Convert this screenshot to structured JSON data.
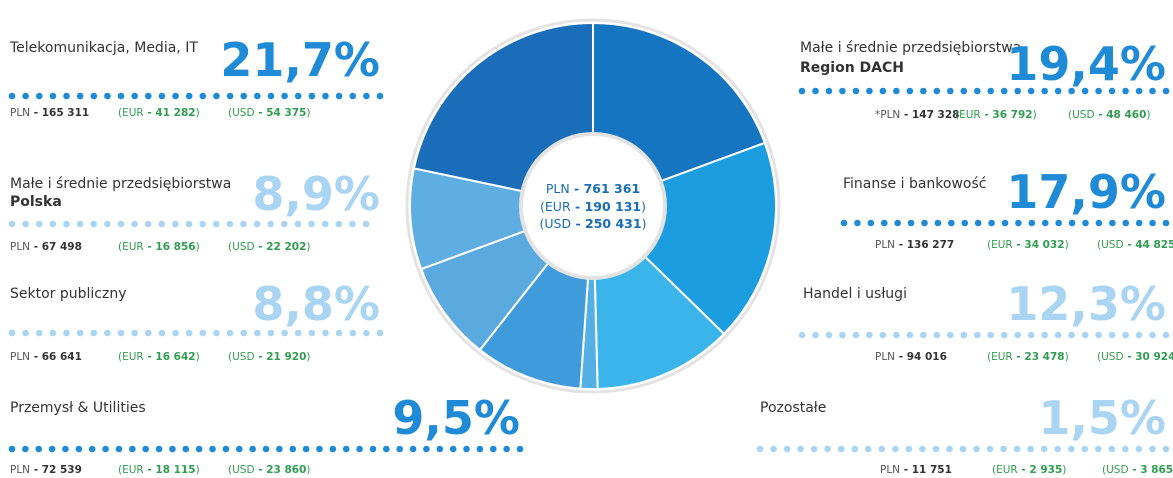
{
  "chart_data": {
    "type": "pie",
    "categories": [
      "Małe i średnie przedsiębiorstwa",
      "Finanse i bankowość",
      "Handel i usługi",
      "Pozostałe",
      "Przemysł & Utilities",
      "Sektor publiczny",
      "Małe i średnie przedsiębiorstwa",
      "Telekomunikacja, Media, IT"
    ],
    "subtitles": [
      "Region DACH",
      null,
      null,
      null,
      null,
      null,
      "Polska",
      null
    ],
    "values": [
      19.4,
      17.9,
      12.3,
      1.5,
      9.5,
      8.8,
      8.9,
      21.7
    ],
    "value_labels": [
      "19,4%",
      "17,9%",
      "12,3%",
      "1,5%",
      "9,5%",
      "8,8%",
      "8,9%",
      "21,7%"
    ],
    "colors": [
      "#1675c0",
      "#1b9de0",
      "#3bb5e9",
      "#54b0e4",
      "#3f9bd9",
      "#5aa9df",
      "#5eaee2",
      "#1a6db8"
    ],
    "label_colors": [
      "#1f8ad6",
      "#1f8ad6",
      "#a9d5f3",
      "#a9d5f3",
      "#1f8ad6",
      "#a9d5f3",
      "#a9d5f3",
      "#1f8ad6"
    ],
    "dash": " - ",
    "open": "(",
    "close": ")",
    "amounts": [
      [
        [
          "*PLN",
          "147 328"
        ],
        [
          "EUR",
          "36 792"
        ],
        [
          "USD",
          "48 460"
        ]
      ],
      [
        [
          "PLN",
          "136 277"
        ],
        [
          "EUR",
          "34 032"
        ],
        [
          "USD",
          "44 825"
        ]
      ],
      [
        [
          "PLN",
          "94 016"
        ],
        [
          "EUR",
          "23 478"
        ],
        [
          "USD",
          "30 924"
        ]
      ],
      [
        [
          "PLN",
          "11 751"
        ],
        [
          "EUR",
          "2 935"
        ],
        [
          "USD",
          "3 865"
        ]
      ],
      [
        [
          "PLN",
          "72 539"
        ],
        [
          "EUR",
          "18 115"
        ],
        [
          "USD",
          "23 860"
        ]
      ],
      [
        [
          "PLN",
          "66 641"
        ],
        [
          "EUR",
          "16 642"
        ],
        [
          "USD",
          "21 920"
        ]
      ],
      [
        [
          "PLN",
          "67 498"
        ],
        [
          "EUR",
          "16 856"
        ],
        [
          "USD",
          "22 202"
        ]
      ],
      [
        [
          "PLN",
          "165 311"
        ],
        [
          "EUR",
          "41 282"
        ],
        [
          "USD",
          "54 375"
        ]
      ]
    ],
    "total": [
      [
        "PLN",
        "761 361"
      ],
      [
        "EUR",
        "190 131"
      ],
      [
        "USD",
        "250 431"
      ]
    ]
  }
}
